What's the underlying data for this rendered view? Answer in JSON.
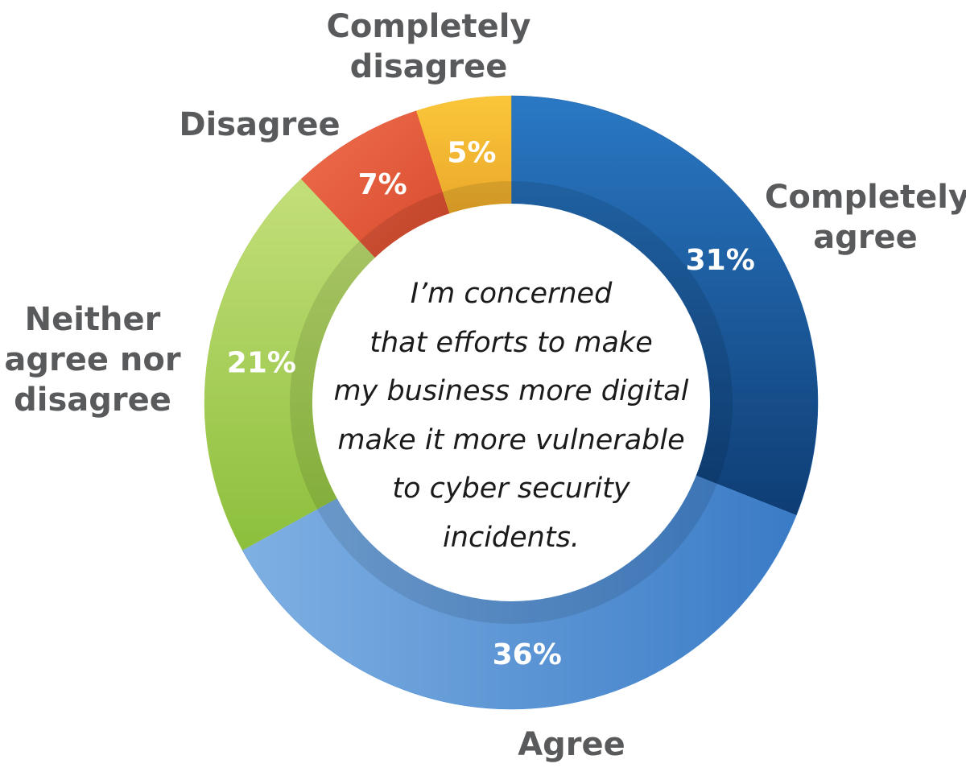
{
  "chart_data": {
    "type": "donut",
    "center_text": "I’m concerned\nthat efforts to make\nmy business more digital\nmake it more vulnerable\nto cyber security\nincidents.",
    "slices": [
      {
        "label": "Completely\nagree",
        "value": 31,
        "value_label": "31%",
        "color": "#1f5fa6"
      },
      {
        "label": "Agree",
        "value": 36,
        "value_label": "36%",
        "color": "#4c8fd6"
      },
      {
        "label": "Neither\nagree nor\ndisagree",
        "value": 21,
        "value_label": "21%",
        "color": "#a3cd4e"
      },
      {
        "label": "Disagree",
        "value": 7,
        "value_label": "7%",
        "color": "#e55a3c"
      },
      {
        "label": "Completely\ndisagree",
        "value": 5,
        "value_label": "5%",
        "color": "#f5bd2e"
      }
    ]
  }
}
